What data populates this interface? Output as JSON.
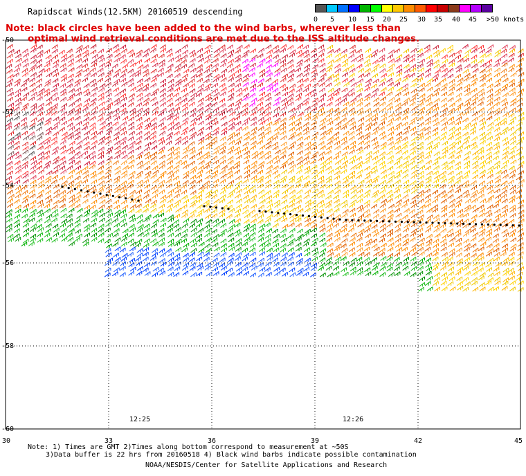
{
  "title": "Rapidscat Winds(12.5KM) 20160519 descending",
  "note": {
    "line1": "Note: black circles have been added to the wind barbs, wherever less than",
    "line2": "optimal wind retrieval conditions are met due to the ISS altitude changes."
  },
  "legend": {
    "colors": [
      "#555555",
      "#00c8ff",
      "#0070ff",
      "#0000ff",
      "#00b400",
      "#00ff00",
      "#ffff00",
      "#ffc800",
      "#ff8c00",
      "#ff5a00",
      "#ff0000",
      "#c80000",
      "#8b3a1a",
      "#ff00ff",
      "#b400ff",
      "#5a00a0"
    ],
    "labels": [
      "0",
      "5",
      "10",
      "15",
      "20",
      "25",
      "30",
      "35",
      "40",
      "45",
      ">50 knots"
    ]
  },
  "map": {
    "lat_labels": [
      "-50",
      "-52",
      "-54",
      "-56",
      "-58",
      "-60"
    ],
    "lon_labels": [
      "30",
      "33",
      "36",
      "39",
      "42",
      "45"
    ],
    "times": [
      "12:25",
      "12:26"
    ]
  },
  "footnote": {
    "line1": "Note: 1) Times are GMT 2)Times along bottom correspond to measurement at ~50S",
    "line2": "3)Data buffer is 22 hrs from 20160518 4) Black wind barbs indicate possible contamination"
  },
  "credit": "NOAA/NESDIS/Center for Satellite Applications and Research"
}
